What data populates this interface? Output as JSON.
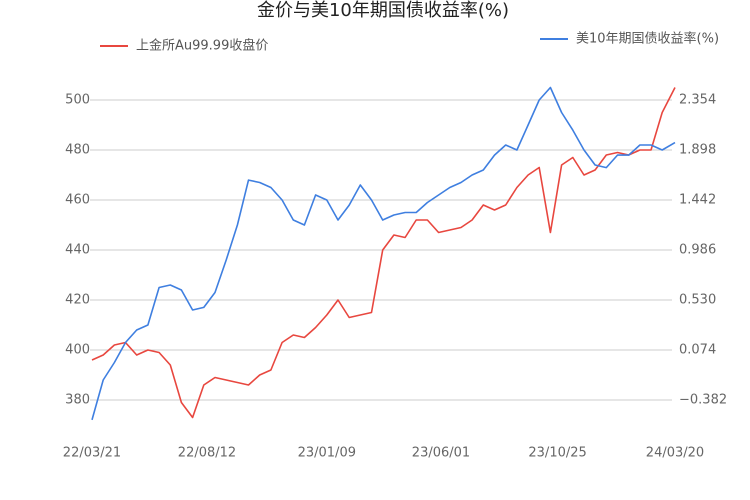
{
  "chart_data": {
    "type": "line",
    "title": "金价与美10年期国债收益率(%)",
    "x": [
      "22/03/21",
      "22/04/04",
      "22/04/18",
      "22/05/02",
      "22/05/16",
      "22/05/30",
      "22/06/13",
      "22/06/27",
      "22/07/11",
      "22/07/25",
      "22/08/08",
      "22/08/22",
      "22/09/05",
      "22/09/19",
      "22/10/03",
      "22/10/17",
      "22/10/31",
      "22/11/14",
      "22/11/28",
      "22/12/12",
      "22/12/26",
      "23/01/09",
      "23/01/23",
      "23/02/06",
      "23/02/20",
      "23/03/06",
      "23/03/20",
      "23/04/03",
      "23/04/17",
      "23/05/01",
      "23/05/15",
      "23/05/29",
      "23/06/12",
      "23/06/26",
      "23/07/10",
      "23/07/24",
      "23/08/07",
      "23/08/21",
      "23/09/04",
      "23/09/18",
      "23/10/02",
      "23/10/16",
      "23/10/30",
      "23/11/13",
      "23/11/27",
      "23/12/11",
      "23/12/25",
      "24/01/08",
      "24/01/22",
      "24/02/05",
      "24/02/19",
      "24/03/04",
      "24/03/20"
    ],
    "xlim": [
      "22/03/21",
      "24/03/20"
    ],
    "xticks": [
      "22/03/21",
      "22/08/12",
      "23/01/09",
      "23/06/01",
      "23/10/25",
      "24/03/20"
    ],
    "series": [
      {
        "name": "上金所Au99.99收盘价",
        "color": "#e8473f",
        "values": [
          396,
          398,
          402,
          403,
          398,
          400,
          399,
          394,
          379,
          373,
          386,
          389,
          388,
          387,
          386,
          390,
          392,
          403,
          406,
          405,
          409,
          414,
          420,
          413,
          414,
          415,
          440,
          446,
          445,
          452,
          452,
          447,
          448,
          449,
          452,
          458,
          456,
          458,
          465,
          470,
          473,
          447,
          474,
          477,
          470,
          472,
          478,
          479,
          478,
          480,
          480,
          495,
          505
        ]
      },
      {
        "name": "美10年期国债收益率(%)",
        "color": "#3f7fe0",
        "axis": "y2",
        "values": [
          -0.564,
          -0.2,
          -0.04,
          0.142,
          0.256,
          0.302,
          0.644,
          0.667,
          0.621,
          0.439,
          0.462,
          0.598,
          0.895,
          1.214,
          1.624,
          1.602,
          1.556,
          1.442,
          1.26,
          1.214,
          1.488,
          1.442,
          1.26,
          1.396,
          1.579,
          1.442,
          1.26,
          1.305,
          1.328,
          1.328,
          1.419,
          1.488,
          1.556,
          1.602,
          1.67,
          1.716,
          1.852,
          1.944,
          1.898,
          2.126,
          2.354,
          2.468,
          2.24,
          2.08,
          1.898,
          1.761,
          1.738,
          1.852,
          1.852,
          1.944,
          1.944,
          1.898,
          1.966
        ]
      }
    ],
    "ylim": [
      368,
      512
    ],
    "yticks": [
      380,
      400,
      420,
      440,
      460,
      480,
      500
    ],
    "y2lim": [
      -0.656,
      2.628
    ],
    "y2ticks": [
      {
        "value": -0.382,
        "label": "−0.382"
      },
      0.074,
      {
        "value": 0.53,
        "label": "0.530"
      },
      0.986,
      1.442,
      1.898,
      2.354
    ],
    "grid": true
  }
}
